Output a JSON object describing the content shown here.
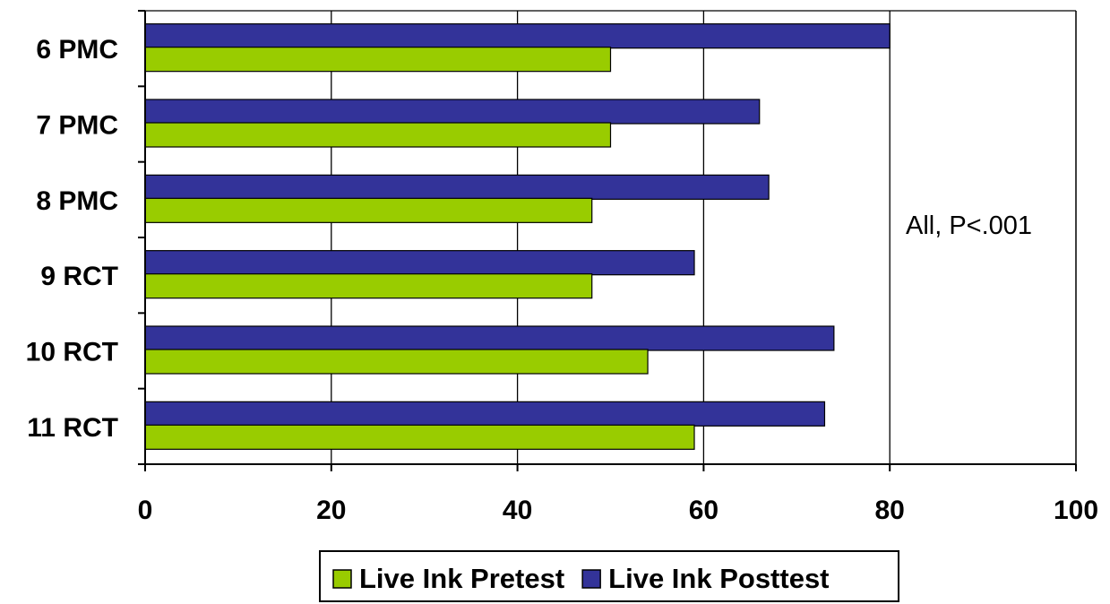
{
  "chart_data": {
    "type": "bar",
    "orientation": "horizontal",
    "categories": [
      "6 PMC",
      "7 PMC",
      "8 PMC",
      "9 RCT",
      "10 RCT",
      "11 RCT"
    ],
    "series": [
      {
        "name": "Live Ink Posttest",
        "color": "#333399",
        "values": [
          80,
          66,
          67,
          59,
          74,
          73
        ]
      },
      {
        "name": "Live Ink Pretest",
        "color": "#99cc00",
        "values": [
          50,
          50,
          48,
          48,
          54,
          59
        ]
      }
    ],
    "xlim": [
      0,
      100
    ],
    "x_ticks": [
      0,
      20,
      40,
      60,
      80,
      100
    ],
    "grid": true,
    "legend_position": "bottom",
    "legend_order": [
      "Live Ink Pretest",
      "Live Ink Posttest"
    ],
    "annotation": "All, P<.001",
    "title": "",
    "xlabel": "",
    "ylabel": ""
  }
}
